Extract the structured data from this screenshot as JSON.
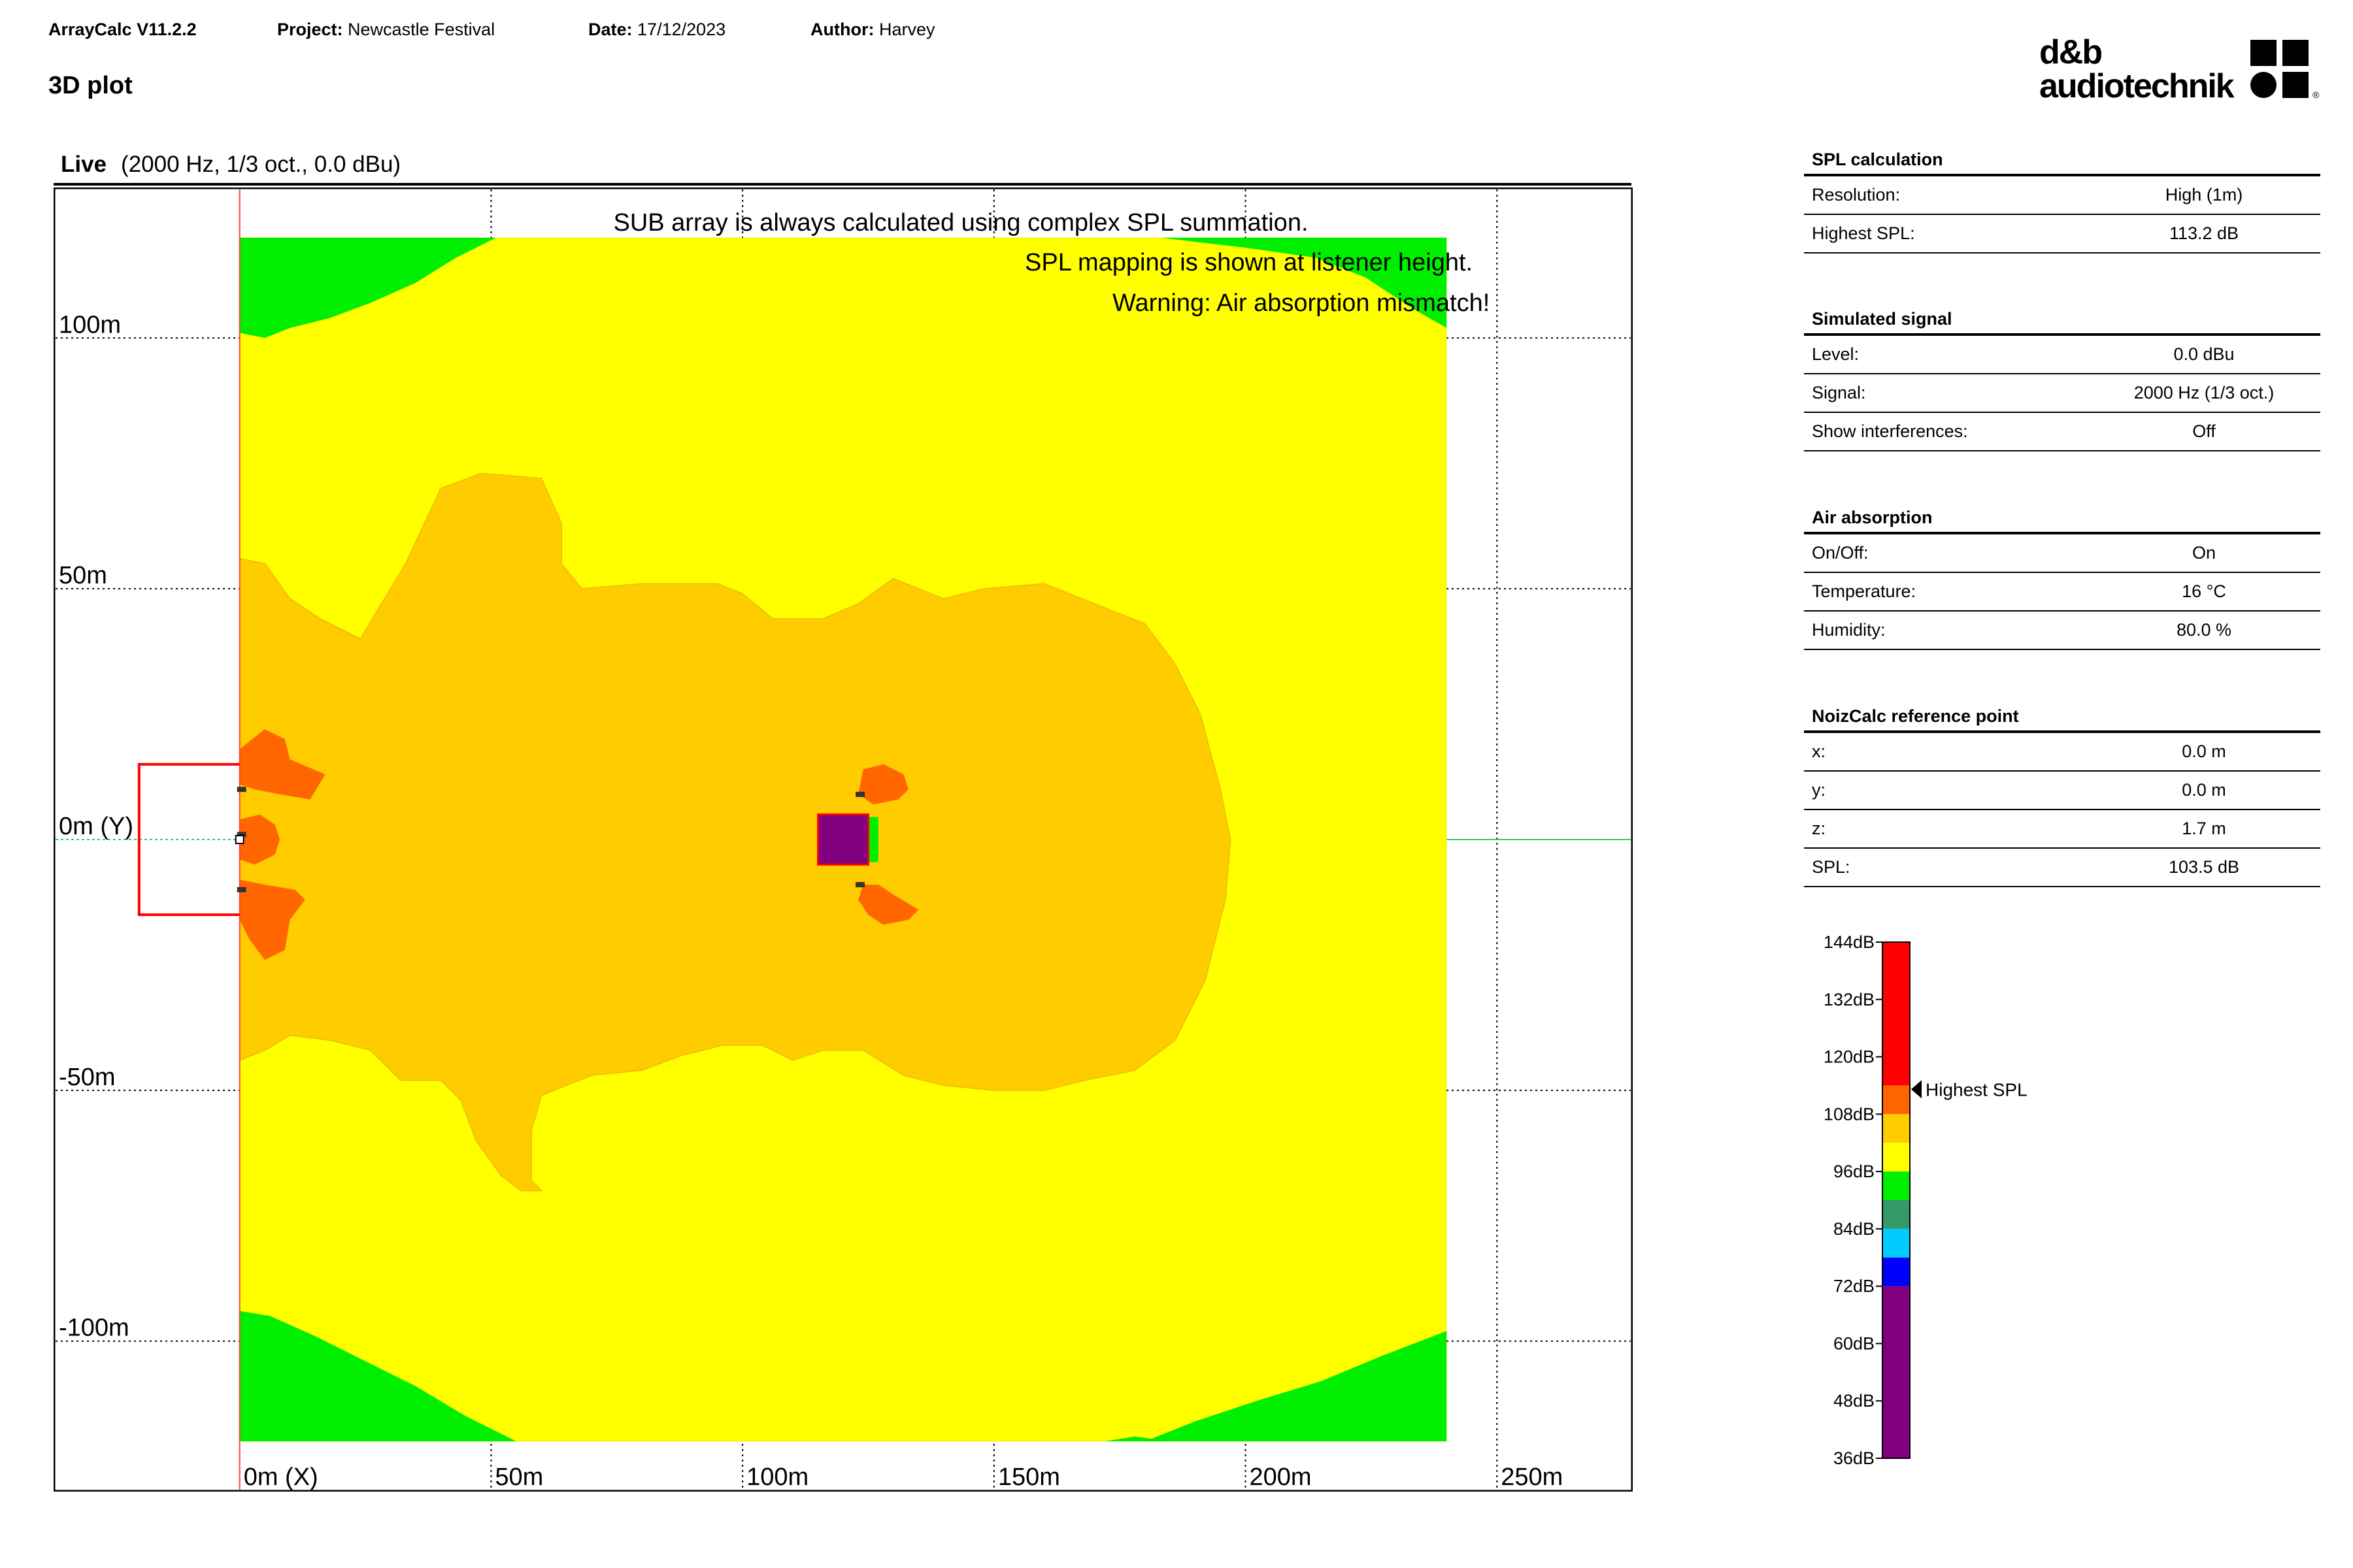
{
  "header": {
    "app_name": "ArrayCalc V11.2.2",
    "project_label": "Project:",
    "project_value": "Newcastle Festival",
    "date_label": "Date:",
    "date_value": "17/12/2023",
    "author_label": "Author:",
    "author_value": "Harvey",
    "page_title": "3D plot",
    "logo_line1": "d&b",
    "logo_line2": "audiotechnik",
    "logo_mark": "®"
  },
  "view": {
    "name": "Live",
    "subtitle": "(2000 Hz, 1/3 oct., 0.0 dBu)"
  },
  "plot": {
    "notes": [
      "SUB array is always calculated using complex SPL summation.",
      "SPL mapping is shown at listener height.",
      "Warning: Air absorption mismatch!"
    ],
    "x_ticks": [
      "0m (X)",
      "50m",
      "100m",
      "150m",
      "200m",
      "250m"
    ],
    "y_ticks": [
      "100m",
      "50m",
      "0m (Y)",
      "-50m",
      "-100m"
    ],
    "x_tick_values": [
      0,
      50,
      100,
      150,
      200,
      250
    ],
    "y_tick_values": [
      100,
      50,
      0,
      -50,
      -100
    ],
    "x_range": [
      -37,
      277
    ],
    "y_range": [
      -130,
      130
    ],
    "area_x_range": [
      0,
      240
    ],
    "area_y_range": [
      -120,
      120
    ],
    "colors": {
      "level_120": "#ff0000",
      "level_108": "#ff6600",
      "level_102": "#ffcc00",
      "level_96": "#ffff00",
      "level_90": "#00ee00",
      "level_84": "#339966",
      "level_78": "#00ccff",
      "level_72": "#0000ff",
      "level_below": "#800080",
      "stage_outline": "#ff0000",
      "axis_line": "#33cc66"
    }
  },
  "spl_calculation": {
    "title": "SPL calculation",
    "rows": [
      {
        "label": "Resolution:",
        "value": "High (1m)"
      },
      {
        "label": "Highest SPL:",
        "value": "113.2 dB"
      }
    ]
  },
  "simulated_signal": {
    "title": "Simulated signal",
    "rows": [
      {
        "label": "Level:",
        "value": "0.0 dBu"
      },
      {
        "label": "Signal:",
        "value": "2000 Hz (1/3 oct.)"
      },
      {
        "label": "Show interferences:",
        "value": "Off"
      }
    ]
  },
  "air_absorption": {
    "title": "Air absorption",
    "rows": [
      {
        "label": "On/Off:",
        "value": "On"
      },
      {
        "label": "Temperature:",
        "value": "16 °C"
      },
      {
        "label": "Humidity:",
        "value": "80.0 %"
      }
    ]
  },
  "noizcalc": {
    "title": "NoizCalc reference point",
    "rows": [
      {
        "label": "x:",
        "value": "0.0 m"
      },
      {
        "label": "y:",
        "value": "0.0 m"
      },
      {
        "label": "z:",
        "value": "1.7 m"
      },
      {
        "label": "SPL:",
        "value": "103.5 dB"
      }
    ]
  },
  "color_scale": {
    "tick_labels": [
      "144dB",
      "132dB",
      "120dB",
      "108dB",
      "96dB",
      "84dB",
      "72dB",
      "60dB",
      "48dB",
      "36dB"
    ],
    "tick_values": [
      144,
      132,
      120,
      108,
      96,
      84,
      72,
      60,
      48,
      36
    ],
    "range": [
      36,
      144
    ],
    "highest_spl_label": "Highest SPL",
    "highest_spl_value": 113.2,
    "bands": [
      {
        "from": 114,
        "to": 144,
        "color": "#ff0000"
      },
      {
        "from": 108,
        "to": 114,
        "color": "#ff6600"
      },
      {
        "from": 102,
        "to": 108,
        "color": "#ffcc00"
      },
      {
        "from": 96,
        "to": 102,
        "color": "#ffff00"
      },
      {
        "from": 90,
        "to": 96,
        "color": "#00ee00"
      },
      {
        "from": 84,
        "to": 90,
        "color": "#339966"
      },
      {
        "from": 78,
        "to": 84,
        "color": "#00ccff"
      },
      {
        "from": 72,
        "to": 78,
        "color": "#0000ff"
      },
      {
        "from": 36,
        "to": 72,
        "color": "#800080"
      }
    ]
  }
}
